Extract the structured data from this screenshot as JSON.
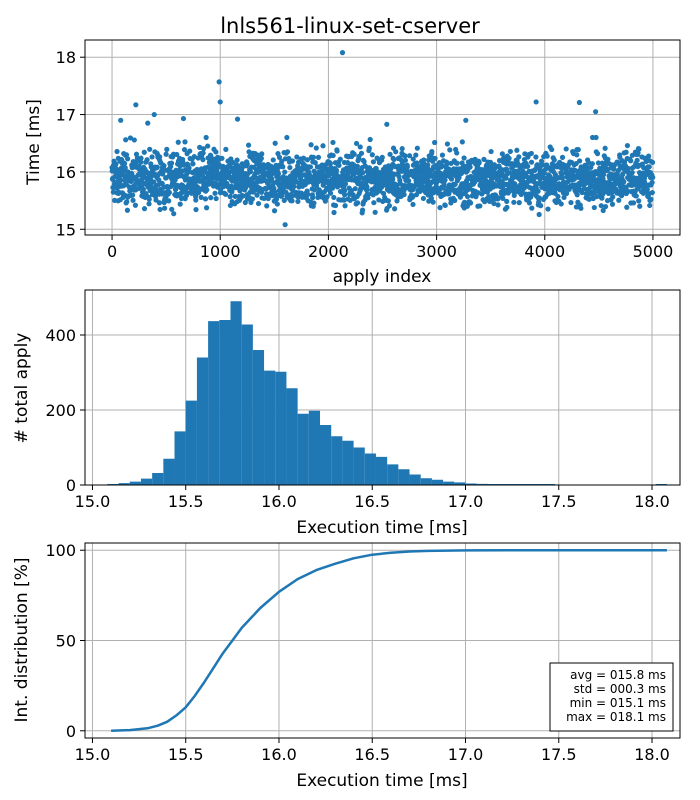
{
  "colors": {
    "series": "#1f77b4",
    "grid": "#b0b0b0",
    "axis": "#000000"
  },
  "chart_data": [
    {
      "type": "scatter",
      "title": "lnls561-linux-set-cserver",
      "xlabel": "apply index",
      "ylabel": "Time [ms]",
      "xlim": [
        -250,
        5250
      ],
      "ylim": [
        14.9,
        18.3
      ],
      "xticks": [
        0,
        1000,
        2000,
        3000,
        4000,
        5000
      ],
      "yticks": [
        15,
        16,
        17,
        18
      ],
      "grid": true,
      "n_points": 5000,
      "band": {
        "center": 15.85,
        "spread": 0.22,
        "min": 15.1,
        "max": 16.6
      },
      "outliers": [
        {
          "x": 2130,
          "y": 18.08
        },
        {
          "x": 990,
          "y": 17.57
        },
        {
          "x": 1000,
          "y": 17.22
        },
        {
          "x": 220,
          "y": 17.17
        },
        {
          "x": 3920,
          "y": 17.22
        },
        {
          "x": 4320,
          "y": 17.21
        },
        {
          "x": 4470,
          "y": 17.05
        },
        {
          "x": 390,
          "y": 17.0
        },
        {
          "x": 80,
          "y": 16.9
        },
        {
          "x": 330,
          "y": 16.85
        },
        {
          "x": 660,
          "y": 16.93
        },
        {
          "x": 1160,
          "y": 16.92
        },
        {
          "x": 2540,
          "y": 16.83
        },
        {
          "x": 3270,
          "y": 16.9
        },
        {
          "x": 1600,
          "y": 15.08
        }
      ]
    },
    {
      "type": "bar",
      "xlabel": "Execution time [ms]",
      "ylabel": "# total apply",
      "xlim": [
        14.96,
        18.15
      ],
      "ylim": [
        0,
        520
      ],
      "xticks": [
        15.0,
        15.5,
        16.0,
        16.5,
        17.0,
        17.5,
        18.0
      ],
      "xtick_labels": [
        "15.0",
        "15.5",
        "16.0",
        "16.5",
        "17.0",
        "17.5",
        "18.0"
      ],
      "yticks": [
        0,
        200,
        400
      ],
      "grid": true,
      "bin_start": 15.08,
      "bin_width": 0.06,
      "counts": [
        2,
        5,
        9,
        17,
        32,
        70,
        143,
        225,
        340,
        437,
        440,
        490,
        428,
        360,
        305,
        302,
        258,
        190,
        198,
        160,
        130,
        118,
        100,
        84,
        75,
        55,
        42,
        28,
        18,
        14,
        9,
        7,
        4,
        3,
        2,
        2,
        1,
        1,
        1,
        1,
        0,
        0,
        0,
        0,
        0,
        0,
        0,
        0,
        0,
        2,
        0,
        0,
        0,
        0,
        0,
        0,
        0,
        0,
        0,
        0,
        0,
        0,
        0,
        0,
        0,
        0,
        0,
        0,
        0,
        0,
        0,
        0,
        0,
        0,
        0,
        0,
        0,
        0,
        0,
        0,
        0,
        0,
        0,
        0,
        0,
        0,
        1
      ]
    },
    {
      "type": "line",
      "xlabel": "Execution time [ms]",
      "ylabel": "Int. distribution [%]",
      "xlim": [
        14.96,
        18.15
      ],
      "ylim": [
        -4,
        104
      ],
      "xticks": [
        15.0,
        15.5,
        16.0,
        16.5,
        17.0,
        17.5,
        18.0
      ],
      "xtick_labels": [
        "15.0",
        "15.5",
        "16.0",
        "16.5",
        "17.0",
        "17.5",
        "18.0"
      ],
      "yticks": [
        0,
        50,
        100
      ],
      "grid": true,
      "x": [
        15.1,
        15.2,
        15.3,
        15.35,
        15.4,
        15.45,
        15.5,
        15.55,
        15.6,
        15.65,
        15.7,
        15.75,
        15.8,
        15.9,
        16.0,
        16.1,
        16.2,
        16.3,
        16.4,
        16.5,
        16.6,
        16.7,
        16.8,
        17.0,
        17.5,
        18.08
      ],
      "y": [
        0,
        0.4,
        1.5,
        2.8,
        5,
        8.5,
        13,
        19.5,
        27,
        35,
        43,
        50,
        57,
        68,
        77,
        84,
        89,
        92.5,
        95.5,
        97.5,
        98.6,
        99.3,
        99.6,
        99.9,
        100,
        100
      ],
      "stats_box": {
        "location": "lower-right",
        "lines": [
          "avg = 015.8 ms",
          "std = 000.3 ms",
          "min = 015.1 ms",
          "max = 018.1 ms"
        ]
      }
    }
  ]
}
